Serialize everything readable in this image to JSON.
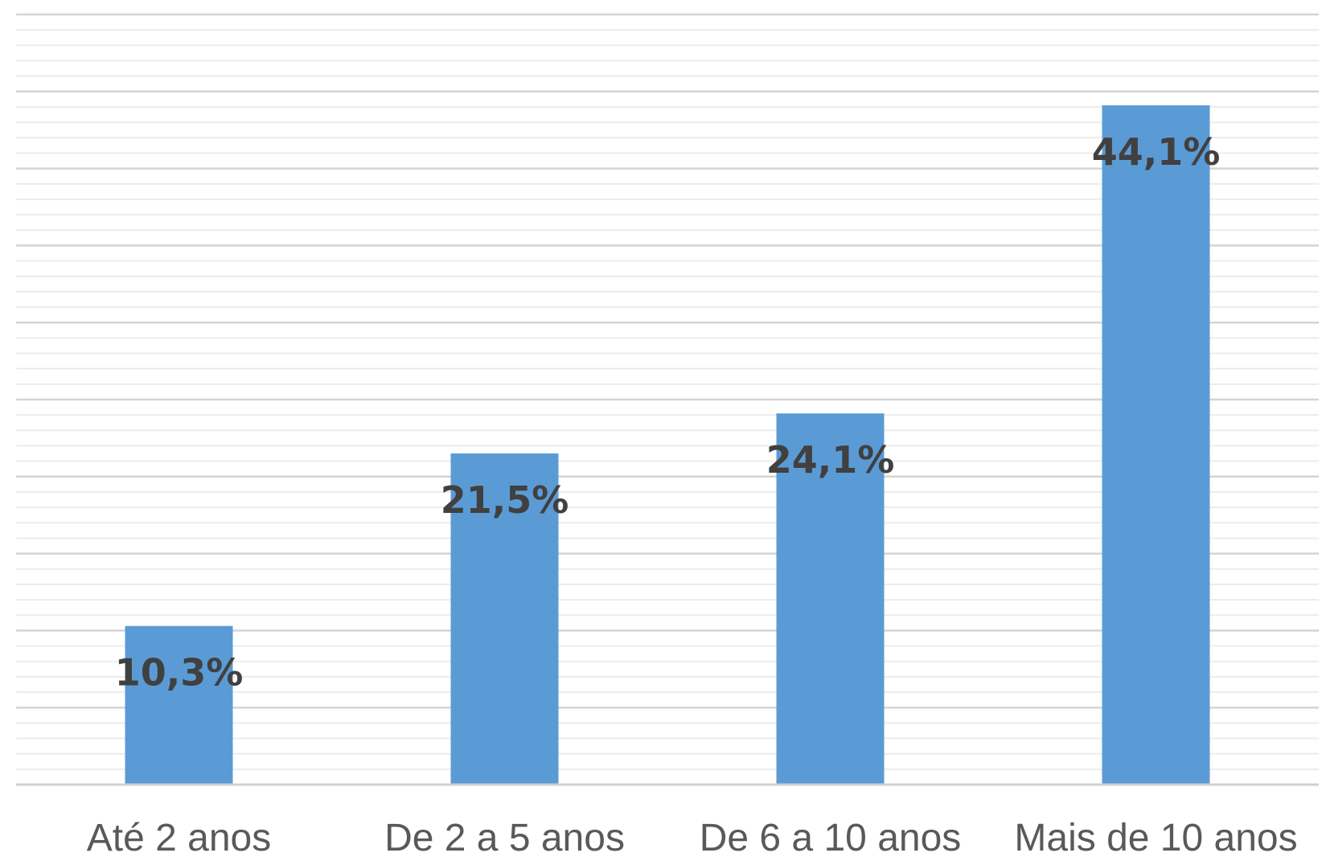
{
  "chart_data": {
    "type": "bar",
    "categories": [
      "Até 2 anos",
      "De 2 a 5 anos",
      "De 6 a 10 anos",
      "Mais de 10 anos"
    ],
    "values": [
      10.3,
      21.5,
      24.1,
      44.1
    ],
    "value_labels": [
      "10,3%",
      "21,5%",
      "24,1%",
      "44,1%"
    ],
    "ylim": [
      0,
      50
    ],
    "grid": true,
    "legend": "none",
    "bar_color": "#5B9BD5"
  }
}
